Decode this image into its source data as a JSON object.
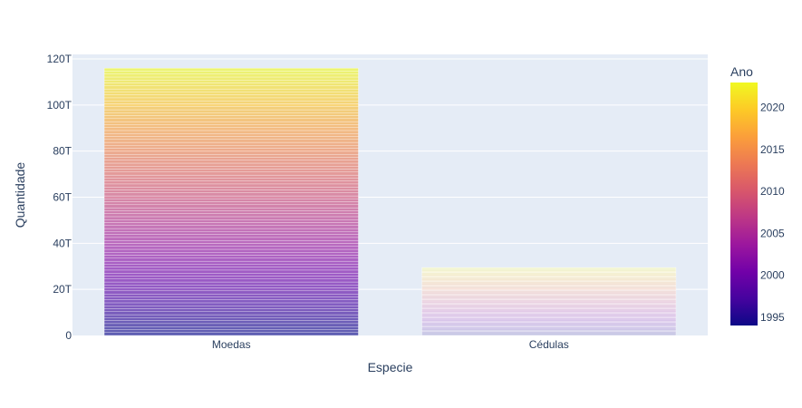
{
  "chart_data": {
    "type": "bar",
    "title": "",
    "xlabel": "Especie",
    "ylabel": "Quantidade",
    "categories": [
      "Moedas",
      "Cédulas"
    ],
    "values": [
      116000000000000.0,
      29500000000000.0
    ],
    "ylim": [
      0,
      120000000000000.0
    ],
    "yticks": [
      0,
      20000000000000.0,
      40000000000000.0,
      60000000000000.0,
      80000000000000.0,
      100000000000000.0,
      120000000000000.0
    ],
    "ytick_labels": [
      "0",
      "20T",
      "40T",
      "60T",
      "80T",
      "100T",
      "120T"
    ],
    "grid": true,
    "barmode": "stack",
    "color_by": "Ano",
    "colorbar": {
      "title": "Ano",
      "range": [
        1994,
        2023
      ],
      "ticks": [
        1995,
        2000,
        2005,
        2010,
        2015,
        2020
      ],
      "colorscale": [
        "#0d0887",
        "#46039f",
        "#7201a8",
        "#9c179e",
        "#bd3786",
        "#d8576b",
        "#ed7953",
        "#fb9f3a",
        "#fdca26",
        "#f0f921"
      ]
    }
  }
}
